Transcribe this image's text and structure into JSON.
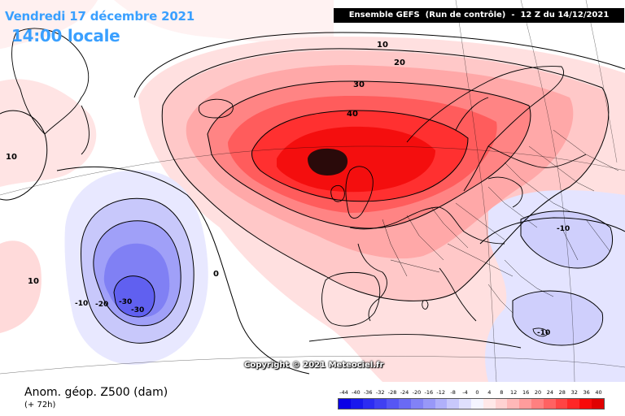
{
  "title": {
    "date": "Vendredi 17 décembre 2021",
    "time": "14:00 locale"
  },
  "model_info": "Ensemble GEFS  (Run de contrôle)  -  12 Z du 14/12/2021",
  "copyright": "Copyright © 2021 Meteociel.fr",
  "field": {
    "label": "Anom. géop. Z500 (dam)",
    "lead": "(+ 72h)"
  },
  "scale": {
    "ticks": [
      "-44",
      "-40",
      "-36",
      "-32",
      "-28",
      "-24",
      "-20",
      "-16",
      "-12",
      "-8",
      "-4",
      "0",
      "4",
      "8",
      "12",
      "16",
      "20",
      "24",
      "28",
      "32",
      "36",
      "40"
    ],
    "colors": [
      "#0a00e6",
      "#1818ee",
      "#2c2cf2",
      "#4040f2",
      "#5656f4",
      "#6a6af4",
      "#8282f6",
      "#9898f8",
      "#b0b0fa",
      "#c8c8fb",
      "#e0e0fd",
      "#f4f4ff",
      "#ffe8e8",
      "#ffd2d2",
      "#ffb8b8",
      "#ff9c9c",
      "#ff8080",
      "#ff6262",
      "#ff4444",
      "#ff2626",
      "#f80a0a",
      "#e00000"
    ]
  },
  "contour_labels": {
    "pos": [
      "10",
      "20",
      "30",
      "40",
      "10",
      "10"
    ],
    "zero": "0",
    "neg": [
      "-10",
      "-20",
      "-30",
      "-30",
      "-10",
      "-10"
    ]
  },
  "colors": {
    "title_blue": "#3aa0ff",
    "positive_anomaly": "#ff2020",
    "negative_anomaly": "#6a6af4",
    "max_core": "#2a0a0a"
  }
}
